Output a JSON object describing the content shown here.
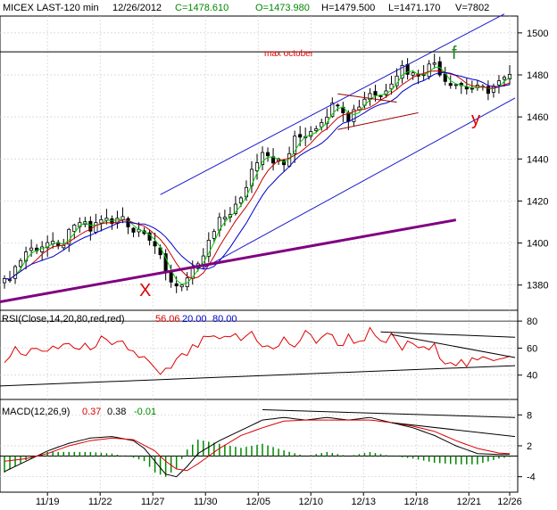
{
  "header": {
    "symbol": "MICEX LAST-120 min",
    "date": "12/26/2012",
    "close": "C=1478.610",
    "open": "O=1473.980",
    "high": "H=1479.500",
    "low": "L=1471.170",
    "volume": "V=7802"
  },
  "rsi_header": {
    "label": "RSI(Close,14,20,80,red,red)",
    "value": "56.06",
    "lower": "20.00",
    "upper": "80.00"
  },
  "macd_header": {
    "label": "MACD(12,26,9)",
    "macd": "0.37",
    "signal": "0.38",
    "hist": "-0.01"
  },
  "annotations": {
    "max_label": "max october",
    "x_mark": "X",
    "f_mark": "f",
    "y_mark": "y"
  },
  "colors": {
    "background": "#ffffff",
    "grid": "#d0d0d0",
    "price_bars": "#000000",
    "ma_fast": "#00cc00",
    "ma_mid": "#cc0000",
    "ma_slow": "#0000cc",
    "channel": "#1a1acc",
    "support": "#800080",
    "rsi_line": "#dd0000",
    "macd_line": "#000000",
    "signal_line": "#dd0000",
    "histogram": "#008800",
    "header_green": "#008800",
    "header_black": "#000000",
    "annotation_red": "#dd0000",
    "annotation_green": "#228822"
  },
  "chart_data": [
    {
      "type": "candlestick",
      "title": "MICEX LAST-120 min",
      "x_labels": [
        "11/19",
        "11/22",
        "11/27",
        "11/30",
        "12/05",
        "12/10",
        "12/13",
        "12/18",
        "12/21",
        "12/26"
      ],
      "y_ticks": [
        1380,
        1400,
        1420,
        1440,
        1460,
        1480,
        1500
      ],
      "ylim": [
        1368,
        1508
      ],
      "close_path": [
        [
          0,
          1381
        ],
        [
          4,
          1396
        ],
        [
          8,
          1400
        ],
        [
          10,
          1397
        ],
        [
          12,
          1404
        ],
        [
          14,
          1410
        ],
        [
          16,
          1406
        ],
        [
          18,
          1412
        ],
        [
          20,
          1409
        ],
        [
          22,
          1413
        ],
        [
          24,
          1406
        ],
        [
          26,
          1407
        ],
        [
          28,
          1399
        ],
        [
          30,
          1385
        ],
        [
          32,
          1380
        ],
        [
          34,
          1383
        ],
        [
          36,
          1388
        ],
        [
          38,
          1400
        ],
        [
          40,
          1410
        ],
        [
          42,
          1415
        ],
        [
          44,
          1420
        ],
        [
          46,
          1435
        ],
        [
          48,
          1445
        ],
        [
          50,
          1440
        ],
        [
          52,
          1437
        ],
        [
          54,
          1449
        ],
        [
          56,
          1452
        ],
        [
          58,
          1456
        ],
        [
          60,
          1462
        ],
        [
          62,
          1468
        ],
        [
          64,
          1460
        ],
        [
          66,
          1466
        ],
        [
          68,
          1472
        ],
        [
          70,
          1470
        ],
        [
          72,
          1478
        ],
        [
          74,
          1484
        ],
        [
          76,
          1480
        ],
        [
          78,
          1482
        ],
        [
          80,
          1486
        ],
        [
          82,
          1478
        ],
        [
          84,
          1476
        ],
        [
          86,
          1474
        ],
        [
          88,
          1473
        ],
        [
          90,
          1473
        ],
        [
          92,
          1476
        ],
        [
          94,
          1479
        ]
      ],
      "n_bars": 95,
      "channel_lines": [
        {
          "name": "upper channel",
          "from": [
            29,
            1423
          ],
          "to": [
            93,
            1509
          ]
        },
        {
          "name": "lower channel",
          "from": [
            37,
            1388
          ],
          "to": [
            95,
            1469
          ]
        }
      ],
      "support_line": {
        "from": [
          0,
          1372
        ],
        "to": [
          84,
          1411
        ]
      },
      "triangle_lines": [
        {
          "from": [
            62,
            1471
          ],
          "to": [
            73,
            1467
          ]
        },
        {
          "from": [
            62,
            1454
          ],
          "to": [
            77,
            1462
          ]
        }
      ],
      "horizontal_line": {
        "label": "max october",
        "value": 1491
      },
      "grid": true
    },
    {
      "type": "line",
      "title": "RSI(Close,14,20,80,red,red)",
      "y_ticks": [
        40,
        60,
        80
      ],
      "ylim": [
        22,
        88
      ],
      "level_lines": [
        80,
        20
      ],
      "rsi_path": [
        [
          0,
          52
        ],
        [
          2,
          58
        ],
        [
          4,
          54
        ],
        [
          6,
          62
        ],
        [
          8,
          56
        ],
        [
          10,
          60
        ],
        [
          12,
          64
        ],
        [
          14,
          58
        ],
        [
          16,
          62
        ],
        [
          18,
          66
        ],
        [
          20,
          60
        ],
        [
          22,
          63
        ],
        [
          24,
          57
        ],
        [
          26,
          52
        ],
        [
          28,
          44
        ],
        [
          29,
          38
        ],
        [
          30,
          42
        ],
        [
          32,
          50
        ],
        [
          34,
          56
        ],
        [
          36,
          62
        ],
        [
          38,
          68
        ],
        [
          40,
          64
        ],
        [
          42,
          70
        ],
        [
          44,
          66
        ],
        [
          46,
          72
        ],
        [
          48,
          63
        ],
        [
          50,
          58
        ],
        [
          52,
          66
        ],
        [
          54,
          62
        ],
        [
          56,
          70
        ],
        [
          58,
          66
        ],
        [
          60,
          72
        ],
        [
          62,
          62
        ],
        [
          64,
          68
        ],
        [
          66,
          65
        ],
        [
          68,
          72
        ],
        [
          70,
          62
        ],
        [
          72,
          68
        ],
        [
          74,
          60
        ],
        [
          76,
          64
        ],
        [
          78,
          58
        ],
        [
          80,
          60
        ],
        [
          82,
          52
        ],
        [
          84,
          50
        ],
        [
          86,
          48
        ],
        [
          88,
          50
        ],
        [
          90,
          52
        ],
        [
          92,
          54
        ],
        [
          94,
          56
        ]
      ],
      "trend_lines": [
        {
          "from": [
            0,
            32
          ],
          "to": [
            95,
            47
          ]
        },
        {
          "from": [
            70,
            72
          ],
          "to": [
            95,
            68
          ]
        },
        {
          "from": [
            72,
            70
          ],
          "to": [
            95,
            53
          ]
        }
      ],
      "current": 56.06
    },
    {
      "type": "line",
      "title": "MACD(12,26,9)",
      "y_ticks": [
        -4,
        2,
        8
      ],
      "ylim": [
        -7,
        11
      ],
      "zero_line": 0,
      "macd_path": [
        [
          0,
          -3
        ],
        [
          4,
          -1
        ],
        [
          8,
          1
        ],
        [
          12,
          2.5
        ],
        [
          16,
          3.5
        ],
        [
          20,
          3.8
        ],
        [
          24,
          3
        ],
        [
          26,
          1.5
        ],
        [
          28,
          -1
        ],
        [
          30,
          -3.5
        ],
        [
          32,
          -4
        ],
        [
          34,
          -2
        ],
        [
          36,
          0.5
        ],
        [
          40,
          3
        ],
        [
          44,
          5
        ],
        [
          48,
          7
        ],
        [
          52,
          7.5
        ],
        [
          56,
          7
        ],
        [
          60,
          7.5
        ],
        [
          64,
          7
        ],
        [
          68,
          7.5
        ],
        [
          72,
          6.5
        ],
        [
          76,
          5.5
        ],
        [
          80,
          4
        ],
        [
          84,
          2
        ],
        [
          88,
          0.5
        ],
        [
          92,
          0.3
        ],
        [
          95,
          0.37
        ]
      ],
      "signal_path": [
        [
          0,
          -1
        ],
        [
          4,
          -0.5
        ],
        [
          8,
          0.5
        ],
        [
          12,
          2
        ],
        [
          16,
          3
        ],
        [
          20,
          3.5
        ],
        [
          24,
          3.2
        ],
        [
          28,
          1
        ],
        [
          30,
          -1
        ],
        [
          32,
          -2.5
        ],
        [
          34,
          -2.8
        ],
        [
          36,
          -1.5
        ],
        [
          40,
          1.5
        ],
        [
          44,
          4
        ],
        [
          48,
          5.5
        ],
        [
          52,
          6.8
        ],
        [
          56,
          7
        ],
        [
          60,
          7
        ],
        [
          64,
          7
        ],
        [
          68,
          7
        ],
        [
          72,
          6.5
        ],
        [
          76,
          5.8
        ],
        [
          80,
          4.8
        ],
        [
          84,
          3
        ],
        [
          88,
          1.5
        ],
        [
          92,
          0.6
        ],
        [
          95,
          0.38
        ]
      ],
      "trend_lines": [
        {
          "from": [
            48,
            9
          ],
          "to": [
            95,
            7.5
          ]
        },
        {
          "from": [
            72,
            6.5
          ],
          "to": [
            95,
            3.8
          ]
        }
      ],
      "current_macd": 0.37,
      "current_signal": 0.38,
      "current_histogram": -0.01
    }
  ]
}
